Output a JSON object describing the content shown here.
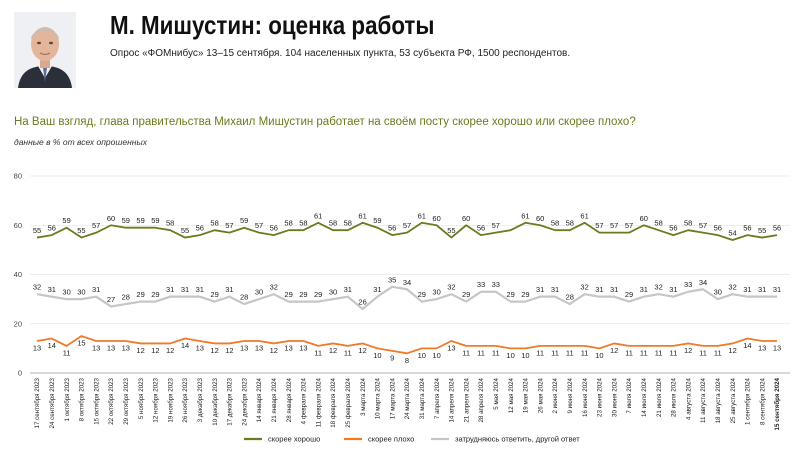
{
  "header": {
    "title": "М. Мишустин: оценка работы",
    "subtitle": "Опрос «ФОМнибус» 13–15 сентября. 104 населенных пункта, 53 субъекта РФ, 1500 респондентов."
  },
  "question": "На Ваш взгляд, глава правительства Михаил Мишустин работает на своём посту скорее хорошо или скорее плохо?",
  "unit_note": "данные в % от всех опрошенных",
  "colors": {
    "good": "#6d7a1f",
    "bad": "#ef7a2a",
    "hard": "#c6c6c6",
    "question": "#6d7a1f"
  },
  "chart_data": {
    "type": "line",
    "ylim": [
      0,
      80
    ],
    "yticks": [
      0,
      20,
      40,
      60,
      80
    ],
    "grid": true,
    "legend_position": "bottom",
    "x": [
      "17 сентября 2023",
      "24 сентября 2023",
      "1 октября 2023",
      "8 октября 2023",
      "15 октября 2023",
      "22 октября 2023",
      "29 октября 2023",
      "5 ноября 2023",
      "12 ноября 2023",
      "19 ноября 2023",
      "26 ноября 2023",
      "3 декабря 2023",
      "10 декабря 2023",
      "17 декабря 2023",
      "24 декабря 2023",
      "14 января 2024",
      "21 января 2024",
      "28 января 2024",
      "4 февраля 2024",
      "11 февраля 2024",
      "18 февраля 2024",
      "25 февраля 2024",
      "3 марта 2024",
      "10 марта 2024",
      "17 марта 2024",
      "24 марта 2024",
      "31 марта 2024",
      "7 апреля 2024",
      "14 апреля 2024",
      "21 апреля 2024",
      "28 апреля 2024",
      "5 мая 2024",
      "12 мая 2024",
      "19 мая 2024",
      "26 мая 2024",
      "2 июня 2024",
      "9 июня 2024",
      "16 июня 2024",
      "23 июня 2024",
      "30 июня 2024",
      "7 июля 2024",
      "14 июля 2024",
      "21 июля 2024",
      "28 июля 2024",
      "4 августа 2024",
      "11 августа 2024",
      "18 августа 2024",
      "25 августа 2024",
      "1 сентября 2024",
      "8 сентября 2024",
      "15 сентября 2024"
    ],
    "series": [
      {
        "name": "скорее хорошо",
        "values": [
          55,
          56,
          59,
          55,
          57,
          60,
          59,
          59,
          59,
          58,
          55,
          56,
          58,
          57,
          59,
          57,
          56,
          58,
          58,
          61,
          58,
          58,
          61,
          59,
          56,
          57,
          61,
          60,
          55,
          60,
          56,
          57,
          58,
          61,
          60,
          58,
          58,
          61,
          57,
          57,
          57,
          60,
          58,
          56,
          58,
          57,
          56,
          54,
          56,
          55,
          56
        ],
        "labels": [
          55,
          56,
          59,
          55,
          57,
          60,
          59,
          59,
          59,
          58,
          55,
          56,
          58,
          57,
          59,
          57,
          56,
          58,
          58,
          61,
          58,
          58,
          61,
          59,
          56,
          57,
          61,
          60,
          55,
          60,
          56,
          57,
          null,
          61,
          60,
          58,
          58,
          61,
          57,
          57,
          57,
          60,
          58,
          56,
          58,
          57,
          56,
          54,
          56,
          55,
          56
        ]
      },
      {
        "name": "скорее плохо",
        "values": [
          13,
          14,
          11,
          15,
          13,
          13,
          13,
          12,
          12,
          12,
          14,
          13,
          12,
          12,
          13,
          13,
          12,
          13,
          13,
          11,
          12,
          11,
          12,
          10,
          9,
          8,
          10,
          10,
          13,
          11,
          11,
          11,
          10,
          10,
          11,
          11,
          11,
          11,
          10,
          12,
          11,
          11,
          11,
          11,
          12,
          11,
          11,
          12,
          14,
          13,
          13
        ],
        "labels": [
          13,
          14,
          11,
          15,
          13,
          13,
          13,
          12,
          12,
          12,
          14,
          13,
          12,
          12,
          13,
          13,
          12,
          13,
          13,
          11,
          12,
          11,
          12,
          10,
          9,
          8,
          10,
          10,
          13,
          11,
          11,
          11,
          10,
          10,
          11,
          11,
          11,
          11,
          10,
          12,
          11,
          11,
          11,
          11,
          12,
          11,
          11,
          12,
          14,
          13,
          13
        ]
      },
      {
        "name": "затрудняюсь ответить, другой ответ",
        "values": [
          32,
          31,
          30,
          30,
          31,
          27,
          28,
          29,
          29,
          31,
          31,
          31,
          29,
          31,
          28,
          30,
          32,
          29,
          29,
          29,
          30,
          31,
          26,
          31,
          35,
          34,
          29,
          30,
          32,
          29,
          33,
          33,
          29,
          29,
          31,
          31,
          28,
          32,
          31,
          31,
          29,
          31,
          32,
          31,
          33,
          34,
          30,
          32,
          31,
          31,
          31
        ],
        "labels": [
          32,
          31,
          30,
          30,
          31,
          27,
          28,
          29,
          29,
          31,
          31,
          31,
          29,
          31,
          28,
          30,
          32,
          29,
          29,
          29,
          30,
          31,
          26,
          31,
          35,
          34,
          29,
          30,
          32,
          29,
          33,
          33,
          29,
          29,
          31,
          31,
          28,
          32,
          31,
          31,
          29,
          31,
          32,
          31,
          33,
          34,
          30,
          32,
          31,
          31,
          31
        ]
      }
    ]
  }
}
